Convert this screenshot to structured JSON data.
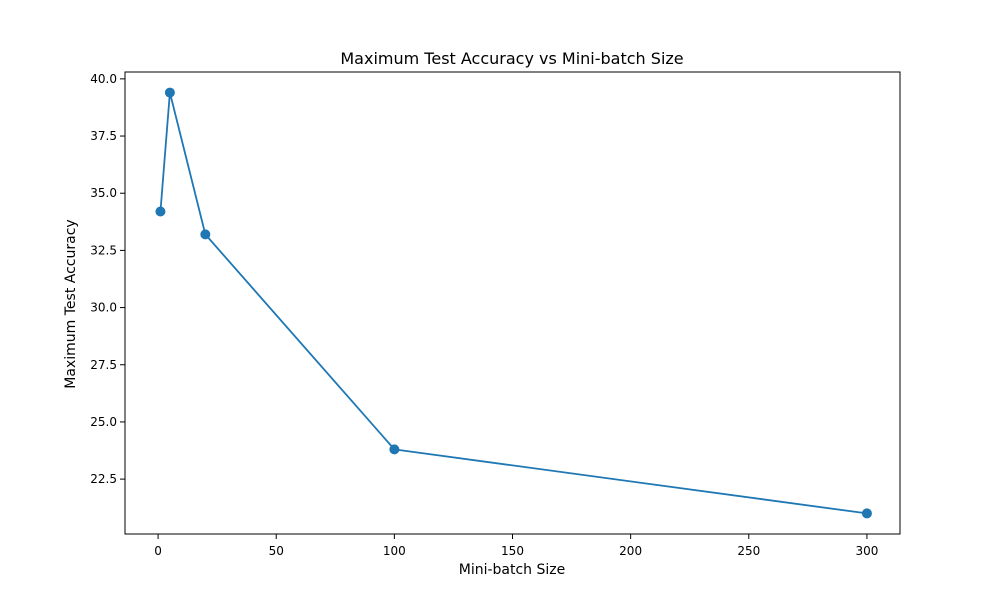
{
  "chart_data": {
    "type": "line",
    "title": "Maximum Test Accuracy vs Mini-batch Size",
    "xlabel": "Mini-batch Size",
    "ylabel": "Maximum Test Accuracy",
    "xlim": [
      -14,
      314
    ],
    "ylim": [
      20.1,
      40.3
    ],
    "x_ticks": [
      0,
      50,
      100,
      150,
      200,
      250,
      300
    ],
    "y_ticks": [
      22.5,
      25.0,
      27.5,
      30.0,
      32.5,
      35.0,
      37.5,
      40.0
    ],
    "grid": false,
    "line_color": "#1f77b4",
    "marker": "circle",
    "series": [
      {
        "x": [
          1,
          5,
          20,
          100,
          300
        ],
        "y": [
          34.2,
          39.4,
          33.2,
          23.8,
          21.0
        ]
      }
    ]
  }
}
